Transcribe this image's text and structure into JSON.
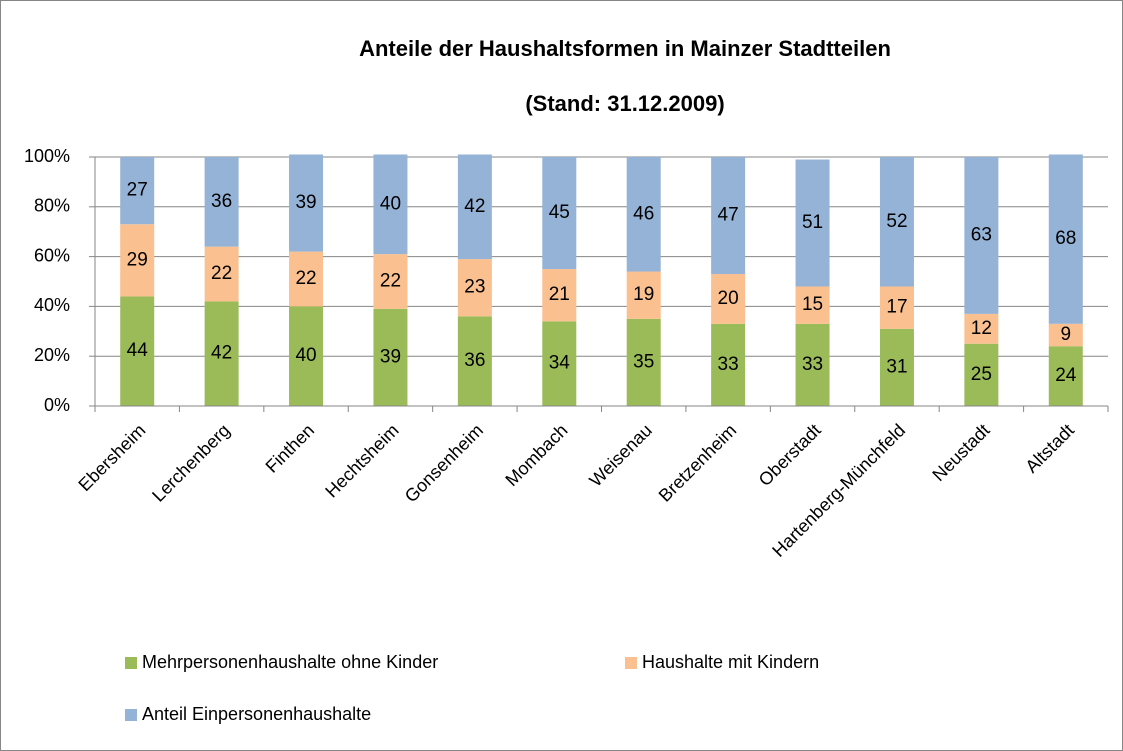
{
  "chart_data": {
    "type": "stacked_bar",
    "title": "Anteile der Haushaltsformen in Mainzer Stadtteilen",
    "subtitle": "(Stand: 31.12.2009)",
    "categories": [
      "Ebersheim",
      "Lerchenberg",
      "Finthen",
      "Hechtsheim",
      "Gonsenheim",
      "Mombach",
      "Weisenau",
      "Bretzenheim",
      "Oberstadt",
      "Hartenberg-Münchfeld",
      "Neustadt",
      "Altstadt"
    ],
    "series": [
      {
        "name": "Mehrpersonenhaushalte ohne Kinder",
        "color": "#9bbb59",
        "values": [
          44,
          42,
          40,
          39,
          36,
          34,
          35,
          33,
          33,
          31,
          25,
          24
        ]
      },
      {
        "name": "Haushalte mit Kindern",
        "color": "#fac090",
        "values": [
          29,
          22,
          22,
          22,
          23,
          21,
          19,
          20,
          15,
          17,
          12,
          9
        ]
      },
      {
        "name": "Anteil Einpersonenhaushalte",
        "color": "#95b3d7",
        "values": [
          27,
          36,
          39,
          40,
          42,
          45,
          46,
          47,
          51,
          52,
          63,
          68
        ]
      }
    ],
    "ylim": [
      0,
      100
    ],
    "yticks": [
      {
        "value": 0,
        "label": "0%"
      },
      {
        "value": 20,
        "label": "20%"
      },
      {
        "value": 40,
        "label": "40%"
      },
      {
        "value": 60,
        "label": "60%"
      },
      {
        "value": 80,
        "label": "80%"
      },
      {
        "value": 100,
        "label": "100%"
      }
    ],
    "grid": true
  }
}
